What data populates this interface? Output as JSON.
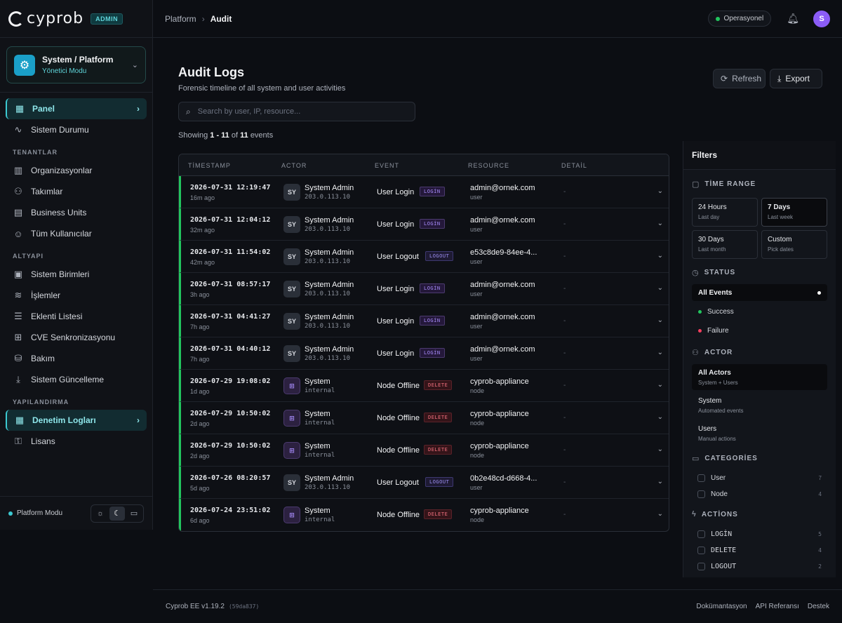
{
  "brand": {
    "name": "cyprob",
    "badge": "ADMIN"
  },
  "context": {
    "title": "System / Platform",
    "subtitle": "Yönetici Modu"
  },
  "sidebar": {
    "items_top": [
      {
        "label": "Panel",
        "icon": "grid-icon",
        "active": true
      },
      {
        "label": "Sistem Durumu",
        "icon": "activity-icon"
      }
    ],
    "groups": [
      {
        "label": "TENANTLAR",
        "items": [
          {
            "label": "Organizasyonlar",
            "icon": "building-icon"
          },
          {
            "label": "Takımlar",
            "icon": "hierarchy-icon"
          },
          {
            "label": "Business Units",
            "icon": "office-icon"
          },
          {
            "label": "Tüm Kullanıcılar",
            "icon": "users-icon"
          }
        ]
      },
      {
        "label": "ALTYAPI",
        "items": [
          {
            "label": "Sistem Birimleri",
            "icon": "server-icon"
          },
          {
            "label": "İşlemler",
            "icon": "layers-icon"
          },
          {
            "label": "Eklenti Listesi",
            "icon": "list-icon"
          },
          {
            "label": "CVE Senkronizasyonu",
            "icon": "cpu-icon"
          },
          {
            "label": "Bakım",
            "icon": "database-icon"
          },
          {
            "label": "Sistem Güncelleme",
            "icon": "download-icon"
          }
        ]
      },
      {
        "label": "YAPILANDIRMA",
        "items": [
          {
            "label": "Denetim Logları",
            "icon": "grid-icon",
            "active": true
          },
          {
            "label": "Lisans",
            "icon": "key-icon"
          }
        ]
      }
    ],
    "footer": {
      "mode_label": "Platform Modu"
    }
  },
  "topbar": {
    "breadcrumb": [
      "Platform",
      "Audit"
    ],
    "status_label": "Operasyonel",
    "avatar_initial": "S"
  },
  "page": {
    "title": "Audit Logs",
    "subtitle": "Forensic timeline of all system and user activities",
    "refresh_label": "Refresh",
    "export_label": "Export",
    "search_placeholder": "Search by user, IP, resource...",
    "showing": {
      "prefix": "Showing",
      "range": "1 - 11",
      "of": "of",
      "total": "11",
      "suffix": "events"
    }
  },
  "table": {
    "headers": [
      "TİMESTAMP",
      "ACTOR",
      "EVENT",
      "RESOURCE",
      "DETAİL"
    ],
    "rows": [
      {
        "ts": "2026-07-31 12:19:47",
        "ago": "16m ago",
        "avatar": "SY",
        "actor": "System Admin",
        "actor_sub": "203.0.113.10",
        "event": "User Login",
        "tag": "LOGİN",
        "tag_type": "login",
        "resource": "admin@ornek.com",
        "res_type": "user",
        "detail": "-"
      },
      {
        "ts": "2026-07-31 12:04:12",
        "ago": "32m ago",
        "avatar": "SY",
        "actor": "System Admin",
        "actor_sub": "203.0.113.10",
        "event": "User Login",
        "tag": "LOGİN",
        "tag_type": "login",
        "resource": "admin@ornek.com",
        "res_type": "user",
        "detail": "-"
      },
      {
        "ts": "2026-07-31 11:54:02",
        "ago": "42m ago",
        "avatar": "SY",
        "actor": "System Admin",
        "actor_sub": "203.0.113.10",
        "event": "User Logout",
        "tag": "LOGOUT",
        "tag_type": "logout",
        "resource": "e53c8de9-84ee-4...",
        "res_type": "user",
        "detail": "-"
      },
      {
        "ts": "2026-07-31 08:57:17",
        "ago": "3h ago",
        "avatar": "SY",
        "actor": "System Admin",
        "actor_sub": "203.0.113.10",
        "event": "User Login",
        "tag": "LOGİN",
        "tag_type": "login",
        "resource": "admin@ornek.com",
        "res_type": "user",
        "detail": "-"
      },
      {
        "ts": "2026-07-31 04:41:27",
        "ago": "7h ago",
        "avatar": "SY",
        "actor": "System Admin",
        "actor_sub": "203.0.113.10",
        "event": "User Login",
        "tag": "LOGİN",
        "tag_type": "login",
        "resource": "admin@ornek.com",
        "res_type": "user",
        "detail": "-"
      },
      {
        "ts": "2026-07-31 04:40:12",
        "ago": "7h ago",
        "avatar": "SY",
        "actor": "System Admin",
        "actor_sub": "203.0.113.10",
        "event": "User Login",
        "tag": "LOGİN",
        "tag_type": "login",
        "resource": "admin@ornek.com",
        "res_type": "user",
        "detail": "-"
      },
      {
        "ts": "2026-07-29 19:08:02",
        "ago": "1d ago",
        "avatar": "",
        "actor": "System",
        "actor_sub": "internal",
        "event": "Node Offline",
        "tag": "DELETE",
        "tag_type": "delete",
        "resource": "cyprob-appliance",
        "res_type": "node",
        "detail": "-"
      },
      {
        "ts": "2026-07-29 10:50:02",
        "ago": "2d ago",
        "avatar": "",
        "actor": "System",
        "actor_sub": "internal",
        "event": "Node Offline",
        "tag": "DELETE",
        "tag_type": "delete",
        "resource": "cyprob-appliance",
        "res_type": "node",
        "detail": "-"
      },
      {
        "ts": "2026-07-29 10:50:02",
        "ago": "2d ago",
        "avatar": "",
        "actor": "System",
        "actor_sub": "internal",
        "event": "Node Offline",
        "tag": "DELETE",
        "tag_type": "delete",
        "resource": "cyprob-appliance",
        "res_type": "node",
        "detail": "-"
      },
      {
        "ts": "2026-07-26 08:20:57",
        "ago": "5d ago",
        "avatar": "SY",
        "actor": "System Admin",
        "actor_sub": "203.0.113.10",
        "event": "User Logout",
        "tag": "LOGOUT",
        "tag_type": "logout",
        "resource": "0b2e48cd-d668-4...",
        "res_type": "user",
        "detail": "-"
      },
      {
        "ts": "2026-07-24 23:51:02",
        "ago": "6d ago",
        "avatar": "",
        "actor": "System",
        "actor_sub": "internal",
        "event": "Node Offline",
        "tag": "DELETE",
        "tag_type": "delete",
        "resource": "cyprob-appliance",
        "res_type": "node",
        "detail": "-"
      }
    ]
  },
  "filters": {
    "title": "Filters",
    "time_range": {
      "label": "TİME RANGE",
      "options": [
        {
          "t": "24 Hours",
          "s": "Last day"
        },
        {
          "t": "7 Days",
          "s": "Last week",
          "active": true
        },
        {
          "t": "30 Days",
          "s": "Last month"
        },
        {
          "t": "Custom",
          "s": "Pick dates"
        }
      ]
    },
    "status": {
      "label": "STATUS",
      "options": [
        {
          "t": "All Events",
          "active": true
        },
        {
          "t": "Success",
          "color": "#22c55e"
        },
        {
          "t": "Failure",
          "color": "#f43f5e"
        }
      ]
    },
    "actor": {
      "label": "ACTOR",
      "options": [
        {
          "t": "All Actors",
          "s": "System + Users",
          "active": true
        },
        {
          "t": "System",
          "s": "Automated events"
        },
        {
          "t": "Users",
          "s": "Manual actions"
        }
      ]
    },
    "categories": {
      "label": "CATEGORİES",
      "options": [
        {
          "t": "User",
          "n": "7"
        },
        {
          "t": "Node",
          "n": "4"
        }
      ]
    },
    "actions": {
      "label": "ACTİONS",
      "options": [
        {
          "t": "LOGİN",
          "n": "5"
        },
        {
          "t": "DELETE",
          "n": "4"
        },
        {
          "t": "LOGOUT",
          "n": "2"
        }
      ]
    }
  },
  "footer": {
    "version": "Cyprob EE v1.19.2",
    "build": "(59da837)",
    "links": [
      "Dokümantasyon",
      "API Referansı",
      "Destek"
    ]
  },
  "colors": {
    "accent": "#3cc9d1",
    "success": "#22c55e",
    "failure": "#f43f5e",
    "avatar": "#8b5cf6"
  }
}
